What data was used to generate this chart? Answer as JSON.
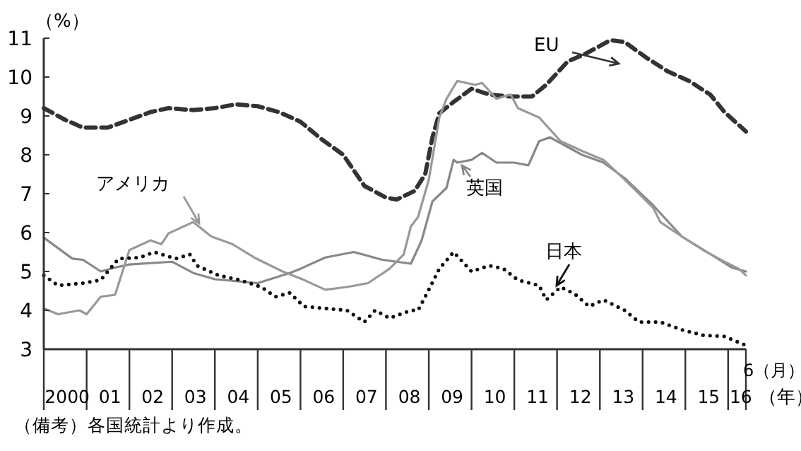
{
  "chart_data": {
    "type": "line",
    "ylabel": "（%）",
    "xlabel": "（年）",
    "xlim": [
      "2000-01",
      "2016-06"
    ],
    "ylim": [
      3,
      11
    ],
    "yticks": [
      3,
      4,
      5,
      6,
      7,
      8,
      9,
      10,
      11
    ],
    "xticks": [
      {
        "value": "2000-07",
        "label": "2000"
      },
      {
        "value": "2001-07",
        "label": "01"
      },
      {
        "value": "2002-07",
        "label": "02"
      },
      {
        "value": "2003-07",
        "label": "03"
      },
      {
        "value": "2004-07",
        "label": "04"
      },
      {
        "value": "2005-07",
        "label": "05"
      },
      {
        "value": "2006-07",
        "label": "06"
      },
      {
        "value": "2007-07",
        "label": "07"
      },
      {
        "value": "2008-07",
        "label": "08"
      },
      {
        "value": "2009-07",
        "label": "09"
      },
      {
        "value": "2010-07",
        "label": "10"
      },
      {
        "value": "2011-07",
        "label": "11"
      },
      {
        "value": "2012-07",
        "label": "12"
      },
      {
        "value": "2013-07",
        "label": "13"
      },
      {
        "value": "2014-07",
        "label": "14"
      },
      {
        "value": "2015-07",
        "label": "15"
      },
      {
        "value": "2016-04",
        "label": "16"
      }
    ],
    "series": [
      {
        "name": "EU",
        "color": "#333333",
        "line_style": "dashed",
        "x": [
          "2000-01",
          "2000-07",
          "2000-12",
          "2001-07",
          "2002-01",
          "2002-07",
          "2002-12",
          "2003-07",
          "2004-01",
          "2004-07",
          "2005-01",
          "2005-07",
          "2006-01",
          "2006-07",
          "2007-01",
          "2007-07",
          "2008-01",
          "2008-04",
          "2008-09",
          "2008-12",
          "2009-02",
          "2009-04",
          "2009-08",
          "2010-01",
          "2010-06",
          "2010-12",
          "2011-06",
          "2011-10",
          "2012-04",
          "2012-09",
          "2013-04",
          "2013-08",
          "2014-02",
          "2014-08",
          "2015-02",
          "2015-08",
          "2015-12",
          "2016-06"
        ],
        "values": [
          9.2,
          8.9,
          8.7,
          8.7,
          8.9,
          9.1,
          9.2,
          9.15,
          9.2,
          9.3,
          9.25,
          9.1,
          8.85,
          8.4,
          8.0,
          7.2,
          6.9,
          6.85,
          7.07,
          7.5,
          8.45,
          9.07,
          9.36,
          9.7,
          9.55,
          9.5,
          9.5,
          9.8,
          10.4,
          10.6,
          10.95,
          10.9,
          10.5,
          10.15,
          9.9,
          9.55,
          9.1,
          8.6
        ]
      },
      {
        "name": "英国",
        "color": "#888888",
        "line_style": "solid",
        "x": [
          "2000-01",
          "2000-09",
          "2000-12",
          "2001-05",
          "2001-09",
          "2002-01",
          "2003-01",
          "2003-07",
          "2004-01",
          "2005-01",
          "2005-10",
          "2006-01",
          "2006-08",
          "2007-04",
          "2007-12",
          "2008-08",
          "2008-11",
          "2009-02",
          "2009-06",
          "2009-08",
          "2009-09",
          "2010-01",
          "2010-04",
          "2010-08",
          "2011-01",
          "2011-05",
          "2011-08",
          "2011-11",
          "2012-02",
          "2012-08",
          "2013-02",
          "2013-08",
          "2014-04",
          "2014-12",
          "2015-08",
          "2016-02",
          "2016-06"
        ],
        "values": [
          5.87,
          5.33,
          5.3,
          5.0,
          5.1,
          5.18,
          5.25,
          4.96,
          4.8,
          4.7,
          4.96,
          5.07,
          5.36,
          5.5,
          5.3,
          5.2,
          5.8,
          6.8,
          7.15,
          7.87,
          7.8,
          7.87,
          8.05,
          7.8,
          7.8,
          7.73,
          8.35,
          8.45,
          8.3,
          8.0,
          7.8,
          7.4,
          6.7,
          5.9,
          5.45,
          5.1,
          5.0
        ]
      },
      {
        "name": "アメリカ",
        "color": "#999999",
        "line_style": "solid",
        "x": [
          "2000-01",
          "2000-05",
          "2000-11",
          "2001-01",
          "2001-05",
          "2001-09",
          "2002-01",
          "2002-07",
          "2002-10",
          "2002-12",
          "2003-07",
          "2003-12",
          "2004-06",
          "2004-12",
          "2005-08",
          "2006-02",
          "2006-08",
          "2007-02",
          "2007-08",
          "2008-02",
          "2008-06",
          "2008-08",
          "2008-10",
          "2009-01",
          "2009-04",
          "2009-06",
          "2009-09",
          "2010-02",
          "2010-04",
          "2010-08",
          "2010-12",
          "2011-02",
          "2011-08",
          "2012-02",
          "2012-08",
          "2013-02",
          "2013-08",
          "2014-04",
          "2014-06",
          "2014-12",
          "2015-06",
          "2015-12",
          "2016-04",
          "2016-06"
        ],
        "values": [
          4.05,
          3.9,
          4.0,
          3.9,
          4.35,
          4.4,
          5.55,
          5.8,
          5.7,
          5.98,
          6.27,
          5.9,
          5.7,
          5.36,
          5.0,
          4.78,
          4.53,
          4.6,
          4.7,
          5.07,
          5.44,
          6.16,
          6.4,
          7.36,
          8.96,
          9.44,
          9.9,
          9.8,
          9.85,
          9.44,
          9.55,
          9.2,
          8.96,
          8.35,
          8.1,
          7.87,
          7.36,
          6.64,
          6.27,
          5.9,
          5.55,
          5.25,
          5.07,
          4.9
        ]
      },
      {
        "name": "日本",
        "color": "#111111",
        "line_style": "dotted",
        "x": [
          "2000-01",
          "2000-05",
          "2000-12",
          "2001-05",
          "2001-10",
          "2002-04",
          "2002-08",
          "2003-02",
          "2003-06",
          "2003-08",
          "2004-02",
          "2004-08",
          "2005-02",
          "2005-06",
          "2005-10",
          "2006-02",
          "2006-08",
          "2007-02",
          "2007-07",
          "2007-10",
          "2008-02",
          "2008-08",
          "2008-10",
          "2008-12",
          "2009-04",
          "2009-08",
          "2010-01",
          "2010-06",
          "2010-10",
          "2011-02",
          "2011-08",
          "2011-10",
          "2012-02",
          "2012-06",
          "2012-10",
          "2013-02",
          "2013-08",
          "2013-12",
          "2014-06",
          "2014-12",
          "2015-06",
          "2015-12",
          "2016-06"
        ],
        "values": [
          4.9,
          4.64,
          4.7,
          4.78,
          5.33,
          5.36,
          5.5,
          5.33,
          5.44,
          5.15,
          4.9,
          4.78,
          4.6,
          4.35,
          4.45,
          4.1,
          4.05,
          4.0,
          3.7,
          4.0,
          3.8,
          4.0,
          4.0,
          4.35,
          5.07,
          5.5,
          5.0,
          5.15,
          5.07,
          4.78,
          4.64,
          4.27,
          4.6,
          4.42,
          4.1,
          4.27,
          4.0,
          3.7,
          3.7,
          3.5,
          3.36,
          3.33,
          3.1
        ]
      }
    ],
    "annotations": [
      "6（月）",
      "（備考）各国統計より作成。"
    ]
  }
}
